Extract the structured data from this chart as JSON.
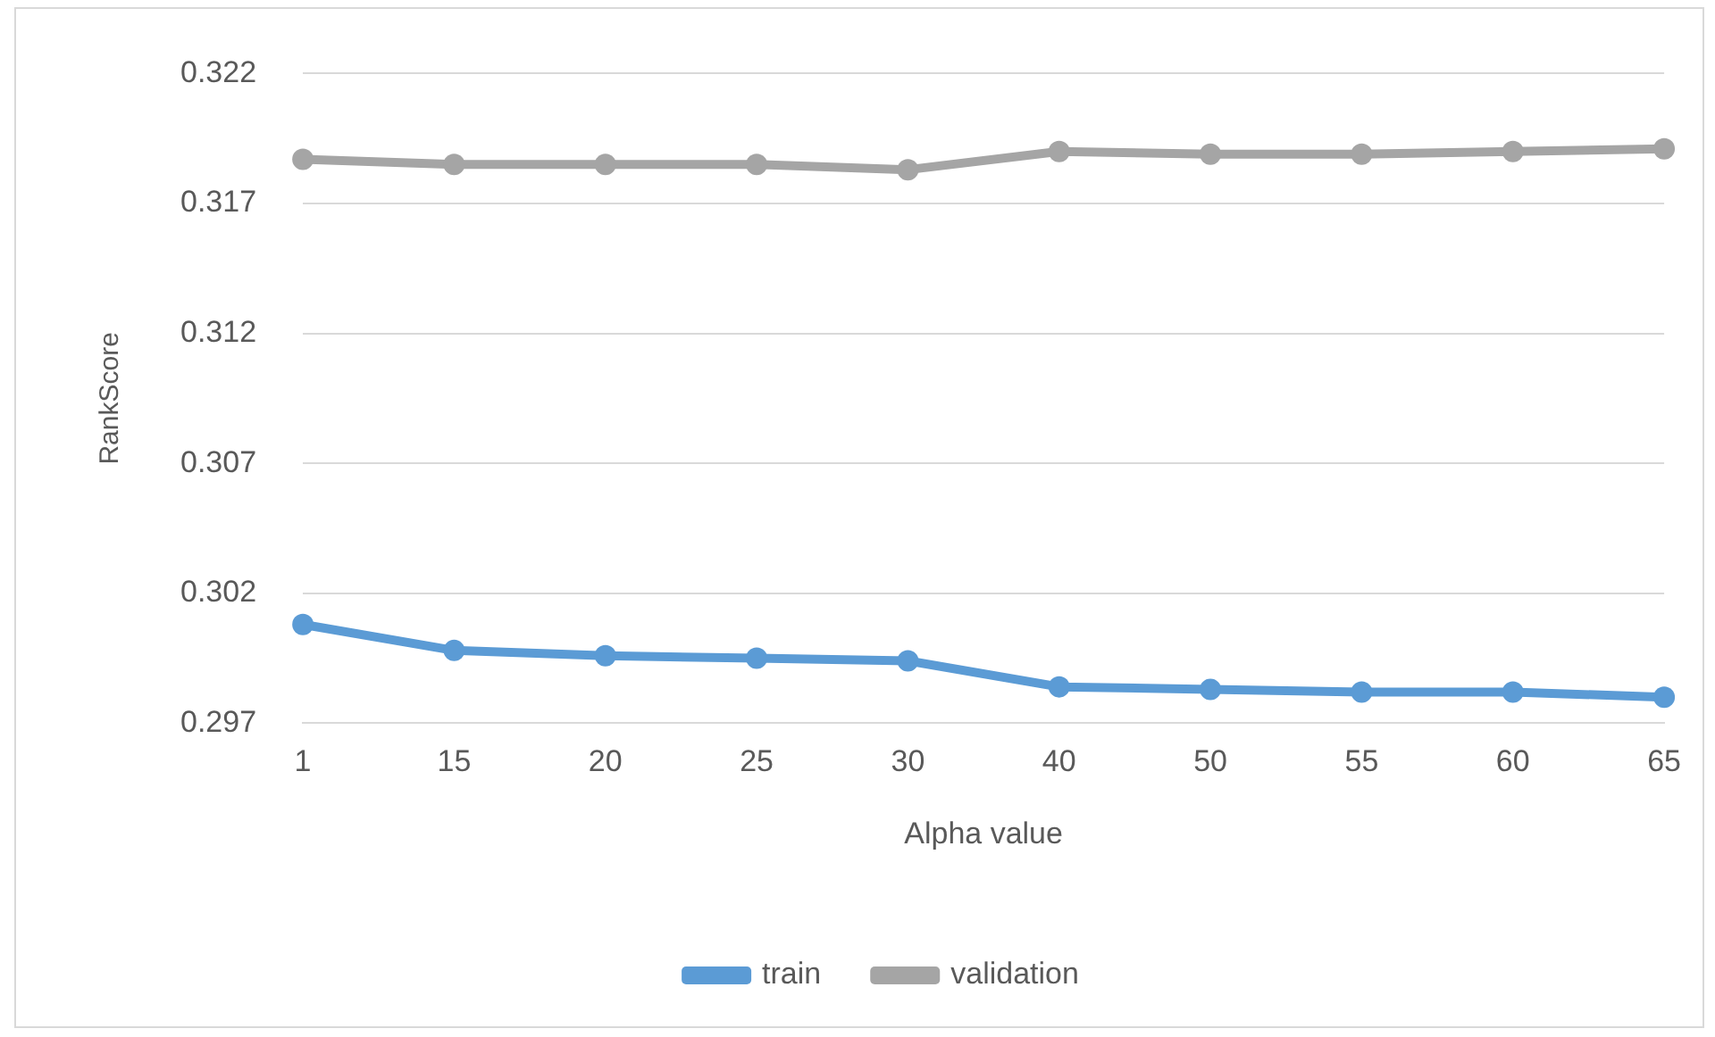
{
  "chart_data": {
    "type": "line",
    "xlabel": "Alpha value",
    "ylabel": "RankScore",
    "categories": [
      "1",
      "15",
      "20",
      "25",
      "30",
      "40",
      "50",
      "55",
      "60",
      "65"
    ],
    "series": [
      {
        "name": "train",
        "color": "#5b9bd5",
        "values": [
          0.3008,
          0.2998,
          0.2996,
          0.2995,
          0.2994,
          0.2984,
          0.2983,
          0.2982,
          0.2982,
          0.298
        ]
      },
      {
        "name": "validation",
        "color": "#a5a5a5",
        "values": [
          0.3187,
          0.3185,
          0.3185,
          0.3185,
          0.3183,
          0.319,
          0.3189,
          0.3189,
          0.319,
          0.3191
        ]
      }
    ],
    "ylim": [
      0.297,
      0.322
    ],
    "yticks": [
      0.297,
      0.302,
      0.307,
      0.312,
      0.317,
      0.322
    ],
    "grid": "y",
    "legend": "bottom",
    "marker": "circle",
    "line_style": "solid"
  }
}
